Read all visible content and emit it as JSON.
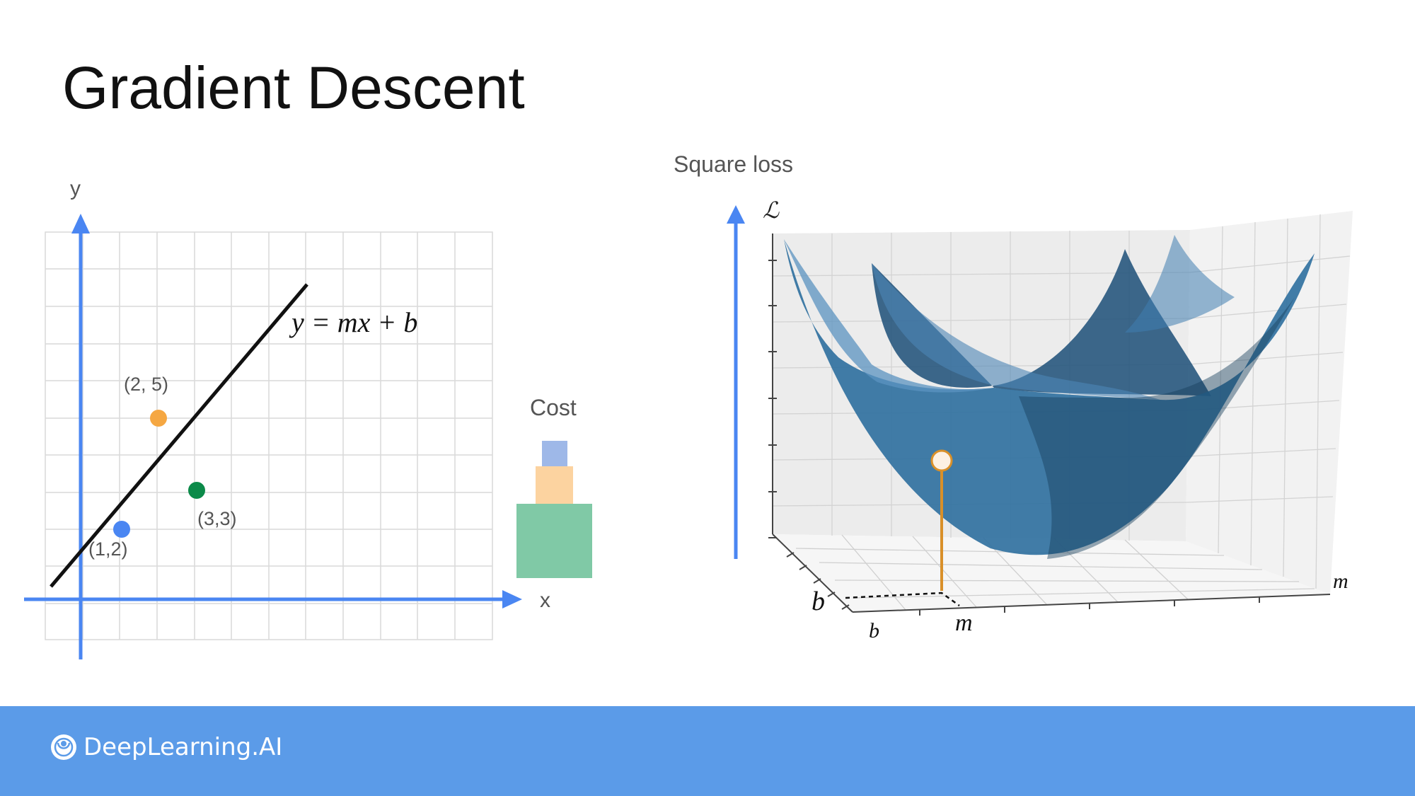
{
  "slide": {
    "title": "Gradient Descent"
  },
  "left_plot": {
    "x_axis_label": "x",
    "y_axis_label": "y",
    "equation": "y = mx + b",
    "points": [
      {
        "label": "(2, 5)",
        "color": "#f5a742"
      },
      {
        "label": "(3,3)",
        "color": "#0b8a49"
      },
      {
        "label": "(1,2)",
        "color": "#4a86f2"
      }
    ],
    "grid_color": "#d9d9d9",
    "axis_color": "#4a86f2",
    "line_color": "#111111"
  },
  "cost": {
    "label": "Cost",
    "blocks": [
      {
        "color": "#9eb8e8"
      },
      {
        "color": "#fcd3a0"
      },
      {
        "color": "#80c9a6"
      }
    ]
  },
  "surface_plot": {
    "title": "Square loss",
    "z_axis_label": "ℒ",
    "b_label": "b",
    "m_label": "m",
    "b_axis_label": "b",
    "m_axis_label": "m",
    "surface_color": "#2e6f9e",
    "marker_color": "#d99029"
  },
  "footer": {
    "brand": "DeepLearning.AI",
    "background": "#5b9be8"
  }
}
